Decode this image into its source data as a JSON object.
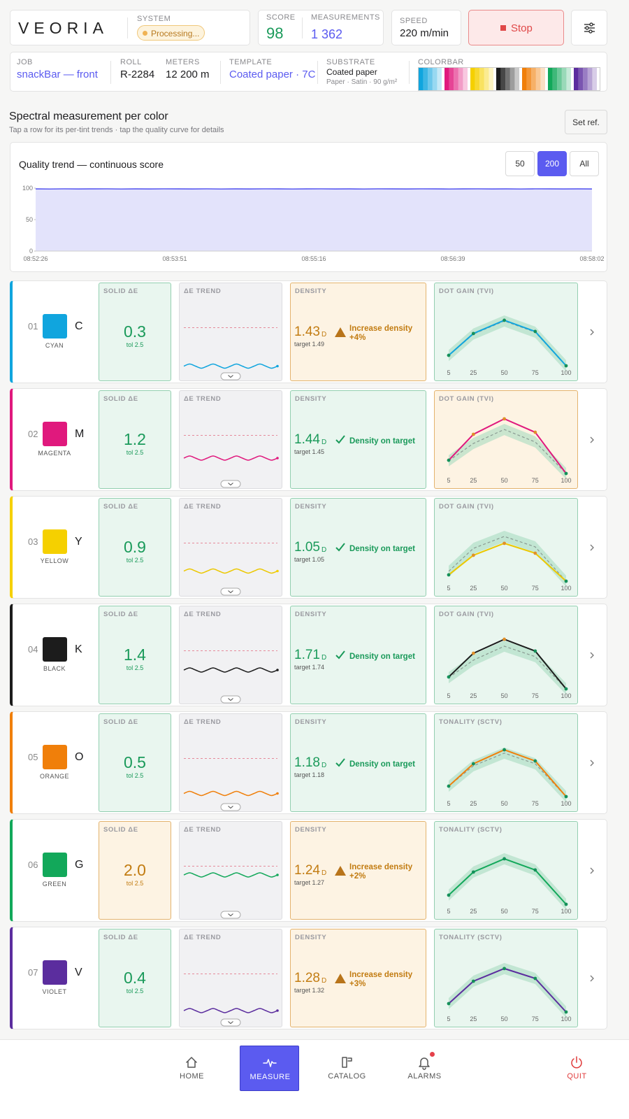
{
  "header": {
    "logo": "VEORIA",
    "system_label": "SYSTEM",
    "system_status": "Processing...",
    "score_label": "SCORE",
    "score": 98,
    "measurements_label": "MEASUREMENTS",
    "measurements": "1 362",
    "speed_label": "SPEED",
    "speed": "220 m/min",
    "stop": "Stop"
  },
  "job": [
    {
      "label": "JOB",
      "value": "snackBar — front",
      "link": true
    },
    {
      "label": "ROLL",
      "value": "R-2284"
    },
    {
      "label": "METERS",
      "value": "12 200 m"
    },
    {
      "label": "TEMPLATE",
      "value": "Coated paper · 7C",
      "link": true
    },
    {
      "label": "SUBSTRATE",
      "value": "Coated paper",
      "detail": "Paper · Satin · 90 g/m²"
    }
  ],
  "colorbar_label": "COLORBAR",
  "section": {
    "title": "Spectral measurement per color",
    "subtitle": "Tap a row for its per-tint trends · tap the quality curve for details",
    "set_ref": "Set ref."
  },
  "chart_data": {
    "type": "area",
    "title": "Quality trend — continuous score",
    "ranges": [
      "50",
      "200",
      "All"
    ],
    "active_range": 1,
    "color": "#5b5bf0",
    "values": [
      98.8,
      98.6,
      98.9,
      98.7,
      98.8,
      98.9,
      98.6,
      98.8,
      98.7,
      98.9,
      98.8,
      98.7,
      98.9,
      98.6,
      98.8,
      98.7,
      98.9,
      98.8,
      98.6,
      98.8,
      98.9,
      98.7,
      98.8,
      98.6,
      98.9,
      98.8,
      98.7,
      98.9,
      98.8,
      98.6,
      98.8,
      98.9,
      98.7,
      98.8,
      98.6,
      98.9,
      98.8,
      98.7,
      98.8,
      98.7
    ],
    "ylim": [
      0,
      100
    ],
    "yticks": [
      0,
      50,
      100
    ],
    "xtick_labels": [
      "08:52:26",
      "08:53:51",
      "08:55:16",
      "08:56:39",
      "08:58:02"
    ]
  },
  "mini": {
    "trend_ylim": [
      0,
      4
    ],
    "trend_tol": 2.5,
    "curve_x": [
      5,
      25,
      50,
      75,
      100
    ],
    "curve_ylim": [
      0,
      30
    ],
    "curve_band": 3
  },
  "rows": [
    {
      "index": "01",
      "letter": "C",
      "name": "CYAN",
      "color": "#10a5de",
      "solid_label": "SOLID ΔE",
      "solid_de": 0.3,
      "tol": "tol 2.5",
      "solid_ok": true,
      "trend_label": "ΔE TREND",
      "trend": [
        0.3,
        0.42,
        0.3,
        0.18,
        0.3,
        0.42,
        0.3,
        0.18,
        0.3,
        0.42,
        0.3,
        0.18,
        0.3,
        0.42,
        0.3,
        0.18,
        0.3
      ],
      "density_label": "DENSITY",
      "density": 1.43,
      "density_unit": "D",
      "target": "target 1.49",
      "density_status": "Increase density +4%",
      "density_ok": false,
      "curve_label": "DOT GAIN (TVI)",
      "curve": [
        5.6,
        17.3,
        24.4,
        18.4,
        0
      ],
      "reference": [
        5.5,
        17,
        24,
        18,
        0
      ],
      "curve_ok": true
    },
    {
      "index": "02",
      "letter": "M",
      "name": "MAGENTA",
      "color": "#e0197d",
      "solid_label": "SOLID ΔE",
      "solid_de": 1.2,
      "tol": "tol 2.5",
      "solid_ok": true,
      "trend_label": "ΔE TREND",
      "trend": [
        1.2,
        1.32,
        1.2,
        1.08,
        1.2,
        1.32,
        1.2,
        1.08,
        1.2,
        1.32,
        1.2,
        1.08,
        1.2,
        1.32,
        1.2,
        1.08,
        1.2
      ],
      "density_label": "DENSITY",
      "density": 1.44,
      "density_unit": "D",
      "target": "target 1.45",
      "density_status": "Density on target",
      "density_ok": true,
      "curve_label": "DOT GAIN (TVI)",
      "curve": [
        7.1,
        21,
        29.3,
        22.1,
        0
      ],
      "reference": [
        6.8,
        16.1,
        23.6,
        16.9,
        0
      ],
      "curve_ok": false
    },
    {
      "index": "03",
      "letter": "Y",
      "name": "YELLOW",
      "color": "#f5d000",
      "solid_label": "SOLID ΔE",
      "solid_de": 0.9,
      "tol": "tol 2.5",
      "solid_ok": true,
      "trend_label": "ΔE TREND",
      "trend": [
        0.9,
        1.02,
        0.9,
        0.78,
        0.9,
        1.02,
        0.9,
        0.78,
        0.9,
        1.02,
        0.9,
        0.78,
        0.9,
        1.02,
        0.9,
        0.78,
        0.9
      ],
      "density_label": "DENSITY",
      "density": 1.05,
      "density_unit": "D",
      "target": "target 1.05",
      "density_status": "Density on target",
      "density_ok": true,
      "curve_label": "DOT GAIN (TVI)",
      "curve": [
        3.4,
        13.9,
        20.3,
        15,
        0
      ],
      "reference": [
        5.3,
        17.6,
        24,
        18.4,
        0
      ],
      "curve_ok": true
    },
    {
      "index": "04",
      "letter": "K",
      "name": "BLACK",
      "color": "#1c1c1c",
      "solid_label": "SOLID ΔE",
      "solid_de": 1.4,
      "tol": "tol 2.5",
      "solid_ok": true,
      "trend_label": "ΔE TREND",
      "trend": [
        1.4,
        1.52,
        1.4,
        1.28,
        1.4,
        1.52,
        1.4,
        1.28,
        1.4,
        1.52,
        1.4,
        1.28,
        1.4,
        1.52,
        1.4,
        1.28,
        1.4
      ],
      "density_label": "DENSITY",
      "density": 1.71,
      "density_unit": "D",
      "target": "target 1.74",
      "density_status": "Density on target",
      "density_ok": true,
      "curve_label": "DOT GAIN (TVI)",
      "curve": [
        6.4,
        19.1,
        26.6,
        20.3,
        0
      ],
      "reference": [
        6,
        15.4,
        22.9,
        17.3,
        0
      ],
      "curve_ok": true
    },
    {
      "index": "05",
      "letter": "O",
      "name": "ORANGE",
      "color": "#f07f0a",
      "solid_label": "SOLID ΔE",
      "solid_de": 0.5,
      "tol": "tol 2.5",
      "solid_ok": true,
      "trend_label": "ΔE TREND",
      "trend": [
        0.5,
        0.62,
        0.5,
        0.38,
        0.5,
        0.62,
        0.5,
        0.38,
        0.5,
        0.62,
        0.5,
        0.38,
        0.5,
        0.62,
        0.5,
        0.38,
        0.5
      ],
      "density_label": "DENSITY",
      "density": 1.18,
      "density_unit": "D",
      "target": "target 1.18",
      "density_status": "Density on target",
      "density_ok": true,
      "curve_label": "TONALITY (SCTV)",
      "curve": [
        5.6,
        17.6,
        25.1,
        19.1,
        0
      ],
      "reference": [
        5.6,
        16.5,
        23.3,
        17.6,
        0
      ],
      "curve_ok": true
    },
    {
      "index": "06",
      "letter": "G",
      "name": "GREEN",
      "color": "#12a85a",
      "solid_label": "SOLID ΔE",
      "solid_de": 2.0,
      "solid_de_label": "2.0",
      "tol": "tol 2.5",
      "solid_ok": false,
      "trend_label": "ΔE TREND",
      "trend": [
        2,
        2.12,
        2,
        1.88,
        2,
        2.12,
        2,
        1.88,
        2,
        2.12,
        2,
        1.88,
        2,
        2.12,
        2,
        1.88,
        2
      ],
      "density_label": "DENSITY",
      "density": 1.24,
      "density_unit": "D",
      "target": "target 1.27",
      "density_status": "Increase density +2%",
      "density_ok": false,
      "curve_label": "TONALITY (SCTV)",
      "curve": [
        4.9,
        17.3,
        24.4,
        18.4,
        0
      ],
      "reference": [
        4.9,
        17.3,
        24.4,
        18.4,
        0
      ],
      "curve_ok": true
    },
    {
      "index": "07",
      "letter": "V",
      "name": "VIOLET",
      "color": "#5b2d9e",
      "solid_label": "SOLID ΔE",
      "solid_de": 0.4,
      "tol": "tol 2.5",
      "solid_ok": true,
      "trend_label": "ΔE TREND",
      "trend": [
        0.4,
        0.52,
        0.4,
        0.28,
        0.4,
        0.52,
        0.4,
        0.28,
        0.4,
        0.52,
        0.4,
        0.28,
        0.4,
        0.52,
        0.4,
        0.28,
        0.4
      ],
      "density_label": "DENSITY",
      "density": 1.28,
      "density_unit": "D",
      "target": "target 1.32",
      "density_status": "Increase density +3%",
      "density_ok": false,
      "curve_label": "TONALITY (SCTV)",
      "curve": [
        4.5,
        16.5,
        23.3,
        18,
        0
      ],
      "reference": [
        4.5,
        16.5,
        23.3,
        18,
        0
      ],
      "curve_ok": true
    }
  ],
  "nav": {
    "items": [
      "HOME",
      "MEASURE",
      "CATALOG",
      "ALARMS",
      "QUIT"
    ],
    "active": 1
  }
}
